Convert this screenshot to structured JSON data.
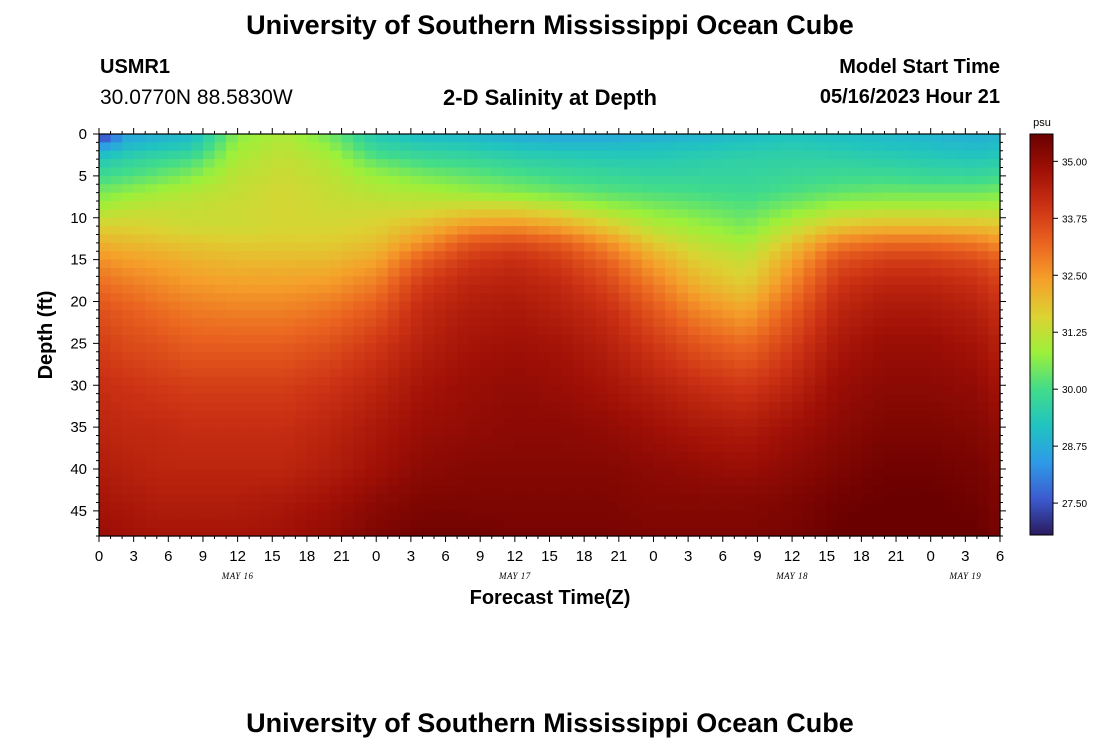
{
  "header": {
    "title": "University of Southern Mississippi Ocean Cube",
    "station_id": "USMR1",
    "coords": "30.0770N  88.5830W",
    "model_start_label": "Model Start Time",
    "model_start_value": "05/16/2023 Hour 21"
  },
  "footer": {
    "title": "University of Southern Mississippi Ocean Cube"
  },
  "chart_data": {
    "type": "heatmap",
    "title": "2-D Salinity at Depth",
    "xlabel": "Forecast Time(Z)",
    "ylabel": "Depth (ft)",
    "x_range_hours": [
      0,
      78
    ],
    "y_range_ft": [
      0,
      48
    ],
    "x_ticks": [
      "0",
      "3",
      "6",
      "9",
      "12",
      "15",
      "18",
      "21",
      "0",
      "3",
      "6",
      "9",
      "12",
      "15",
      "18",
      "21",
      "0",
      "3",
      "6",
      "9",
      "12",
      "15",
      "18",
      "21",
      "0",
      "3",
      "6"
    ],
    "day_labels": [
      {
        "label": "MAY 16",
        "hour": 12
      },
      {
        "label": "MAY 17",
        "hour": 36
      },
      {
        "label": "MAY 18",
        "hour": 60
      },
      {
        "label": "MAY 19",
        "hour": 75
      }
    ],
    "y_ticks": [
      0,
      5,
      10,
      15,
      20,
      25,
      30,
      35,
      40,
      45
    ],
    "colorbar": {
      "unit": "psu",
      "min": 26.8,
      "max": 35.6,
      "ticks": [
        "35.00",
        "33.75",
        "32.50",
        "31.25",
        "30.00",
        "28.75",
        "27.50"
      ],
      "colors": [
        "#2a1a5e",
        "#3c5bd0",
        "#2e9be8",
        "#20c4c0",
        "#42dc8a",
        "#9cf03a",
        "#dcd232",
        "#f5a02a",
        "#ea6420",
        "#cc3214",
        "#a01006",
        "#6a0000"
      ]
    },
    "grid_hours": [
      0,
      2.5,
      5,
      8,
      12,
      16,
      20,
      24,
      28,
      32,
      36,
      40,
      44,
      48,
      52,
      56,
      60,
      64,
      68,
      72,
      76,
      78
    ],
    "grid_depths": [
      0,
      1,
      2,
      3,
      5,
      7,
      9,
      11,
      13,
      15,
      18,
      21,
      25,
      30,
      35,
      40,
      44,
      48
    ],
    "salinity": [
      [
        26.8,
        28.6,
        28.8,
        29.0,
        30.6,
        31.0,
        30.4,
        29.3,
        29.0,
        28.9,
        28.7,
        28.6,
        28.6,
        28.7,
        28.8,
        29.0,
        29.2,
        29.1,
        29.0,
        28.9,
        28.8,
        28.9
      ],
      [
        28.0,
        28.8,
        29.0,
        29.2,
        30.8,
        31.1,
        30.6,
        29.6,
        29.3,
        29.2,
        29.0,
        28.9,
        28.9,
        29.0,
        29.1,
        29.2,
        29.3,
        29.2,
        29.1,
        29.0,
        28.9,
        29.0
      ],
      [
        28.8,
        29.2,
        29.4,
        29.6,
        30.9,
        31.2,
        30.8,
        29.8,
        29.6,
        29.5,
        29.3,
        29.2,
        29.2,
        29.2,
        29.3,
        29.4,
        29.5,
        29.4,
        29.3,
        29.2,
        29.1,
        29.2
      ],
      [
        29.3,
        29.6,
        29.8,
        30.0,
        31.0,
        31.3,
        31.0,
        30.2,
        29.9,
        29.8,
        29.6,
        29.5,
        29.4,
        29.4,
        29.5,
        29.6,
        29.6,
        29.6,
        29.5,
        29.4,
        29.3,
        29.4
      ],
      [
        29.9,
        30.1,
        30.3,
        30.6,
        31.2,
        31.4,
        31.2,
        30.8,
        30.5,
        30.3,
        30.1,
        29.9,
        29.8,
        29.7,
        29.7,
        29.7,
        29.8,
        29.9,
        29.9,
        29.8,
        29.8,
        29.9
      ],
      [
        30.5,
        30.7,
        30.9,
        31.1,
        31.3,
        31.5,
        31.3,
        31.1,
        31.0,
        30.8,
        30.6,
        30.4,
        30.2,
        30.1,
        30.0,
        29.9,
        30.1,
        30.3,
        30.4,
        30.4,
        30.4,
        30.5
      ],
      [
        31.0,
        31.2,
        31.3,
        31.3,
        31.4,
        31.5,
        31.4,
        31.4,
        31.4,
        31.6,
        31.6,
        31.3,
        30.9,
        30.6,
        30.4,
        30.2,
        30.6,
        31.0,
        31.1,
        31.1,
        31.1,
        31.1
      ],
      [
        31.6,
        31.6,
        31.5,
        31.4,
        31.4,
        31.5,
        31.5,
        31.6,
        32.0,
        32.5,
        32.6,
        32.3,
        31.7,
        31.1,
        30.8,
        30.5,
        31.2,
        31.8,
        32.0,
        32.0,
        31.9,
        31.8
      ],
      [
        32.1,
        32.0,
        31.9,
        31.8,
        31.7,
        31.7,
        31.7,
        31.9,
        32.6,
        33.4,
        33.6,
        33.3,
        32.6,
        31.7,
        31.2,
        30.9,
        31.8,
        32.8,
        33.1,
        33.1,
        32.9,
        32.6
      ],
      [
        32.6,
        32.4,
        32.3,
        32.1,
        32.0,
        32.0,
        32.0,
        32.3,
        33.3,
        33.9,
        34.1,
        33.8,
        33.2,
        32.3,
        31.6,
        31.3,
        32.3,
        33.5,
        33.8,
        33.8,
        33.6,
        33.3
      ],
      [
        33.1,
        32.9,
        32.7,
        32.5,
        32.4,
        32.4,
        32.5,
        32.9,
        33.9,
        34.3,
        34.4,
        34.2,
        33.7,
        32.9,
        32.1,
        31.7,
        32.8,
        34.0,
        34.3,
        34.3,
        34.1,
        33.8
      ],
      [
        33.5,
        33.3,
        33.1,
        32.9,
        32.8,
        32.8,
        33.0,
        33.4,
        34.2,
        34.5,
        34.6,
        34.4,
        34.1,
        33.4,
        32.7,
        32.3,
        33.3,
        34.3,
        34.6,
        34.6,
        34.4,
        34.1
      ],
      [
        33.8,
        33.6,
        33.5,
        33.3,
        33.3,
        33.3,
        33.5,
        33.9,
        34.4,
        34.7,
        34.8,
        34.7,
        34.4,
        33.9,
        33.4,
        33.1,
        33.8,
        34.6,
        34.9,
        34.9,
        34.7,
        34.4
      ],
      [
        34.1,
        34.0,
        33.9,
        33.8,
        33.8,
        33.8,
        34.0,
        34.3,
        34.7,
        34.9,
        35.0,
        34.9,
        34.7,
        34.4,
        34.1,
        33.9,
        34.3,
        34.9,
        35.1,
        35.1,
        35.0,
        34.7
      ],
      [
        34.3,
        34.2,
        34.2,
        34.1,
        34.1,
        34.1,
        34.3,
        34.6,
        34.9,
        35.0,
        35.1,
        35.1,
        35.0,
        34.8,
        34.6,
        34.5,
        34.8,
        35.1,
        35.3,
        35.3,
        35.2,
        35.0
      ],
      [
        34.5,
        34.4,
        34.3,
        34.3,
        34.3,
        34.3,
        34.5,
        34.8,
        35.1,
        35.2,
        35.2,
        35.2,
        35.2,
        35.1,
        35.0,
        34.9,
        35.1,
        35.3,
        35.5,
        35.5,
        35.4,
        35.2
      ],
      [
        34.7,
        34.6,
        34.5,
        34.5,
        34.5,
        34.6,
        34.8,
        35.1,
        35.3,
        35.3,
        35.3,
        35.3,
        35.3,
        35.2,
        35.2,
        35.2,
        35.3,
        35.5,
        35.6,
        35.6,
        35.5,
        35.3
      ],
      [
        34.9,
        34.8,
        34.7,
        34.7,
        34.7,
        34.8,
        35.0,
        35.3,
        35.5,
        35.5,
        35.4,
        35.4,
        35.4,
        35.3,
        35.3,
        35.3,
        35.4,
        35.6,
        35.7,
        35.7,
        35.6,
        35.4
      ]
    ]
  }
}
